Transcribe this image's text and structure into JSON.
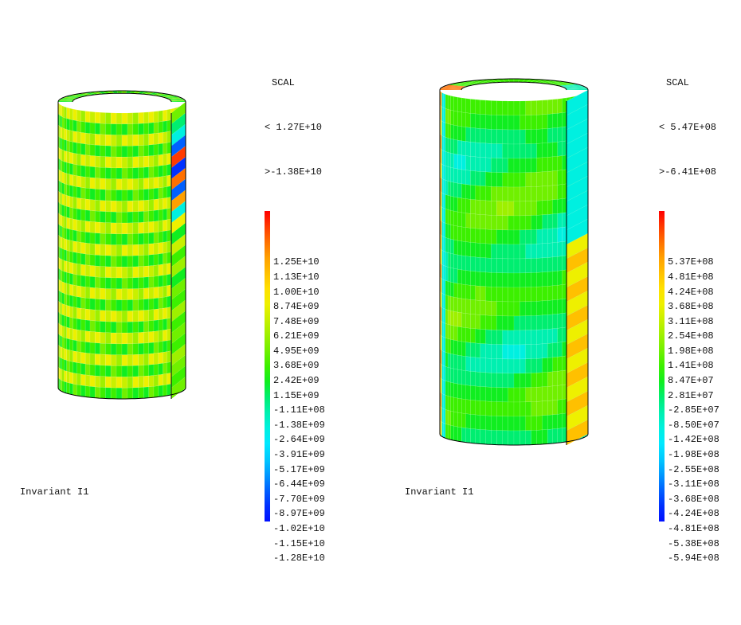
{
  "panels": [
    {
      "legend": {
        "title": "SCAL",
        "max_label": "< 1.27E+10",
        "min_label": ">-1.38E+10",
        "values": [
          "1.25E+10",
          "1.13E+10",
          "1.00E+10",
          "8.74E+09",
          "7.48E+09",
          "6.21E+09",
          "4.95E+09",
          "3.68E+09",
          "2.42E+09",
          "1.15E+09",
          "-1.11E+08",
          "-1.38E+09",
          "-2.64E+09",
          "-3.91E+09",
          "-5.17E+09",
          "-6.44E+09",
          "-7.70E+09",
          "-8.97E+09",
          "-1.02E+10",
          "-1.15E+10",
          "-1.28E+10"
        ]
      },
      "caption": "Invariant I1"
    },
    {
      "legend": {
        "title": "SCAL",
        "max_label": "< 5.47E+08",
        "min_label": ">-6.41E+08",
        "values": [
          "5.37E+08",
          "4.81E+08",
          "4.24E+08",
          "3.68E+08",
          "3.11E+08",
          "2.54E+08",
          "1.98E+08",
          "1.41E+08",
          "8.47E+07",
          "2.81E+07",
          "-2.85E+07",
          "-8.50E+07",
          "-1.42E+08",
          "-1.98E+08",
          "-2.55E+08",
          "-3.11E+08",
          "-3.68E+08",
          "-4.24E+08",
          "-4.81E+08",
          "-5.38E+08",
          "-5.94E+08"
        ]
      },
      "caption": "Invariant I1"
    }
  ],
  "colormap": [
    "#ff0000",
    "#ff3a00",
    "#ff7000",
    "#ffa000",
    "#ffc000",
    "#ffe000",
    "#eef000",
    "#c8f000",
    "#9ef000",
    "#70f000",
    "#3cf000",
    "#10ee20",
    "#00ee70",
    "#00f0b0",
    "#00f0e0",
    "#00e8ff",
    "#00c8ff",
    "#0098ff",
    "#0060ff",
    "#0030ff",
    "#0010ff"
  ]
}
